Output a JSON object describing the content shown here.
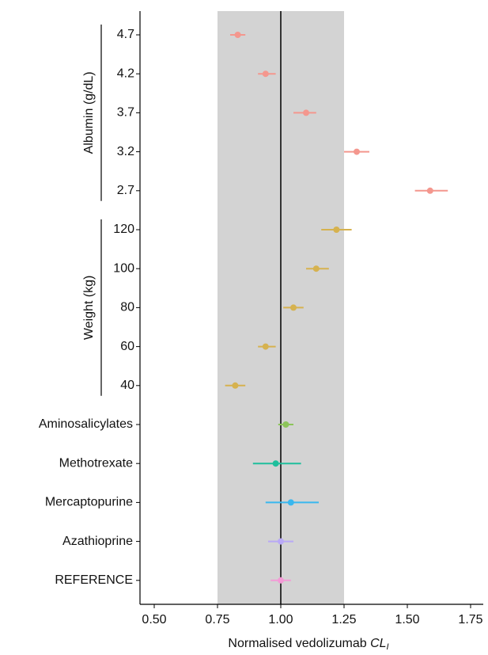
{
  "chart_data": {
    "type": "forest",
    "xlabel": {
      "text": "Normalised vedolizumab ",
      "italic": "CL",
      "subscript": "I"
    },
    "xlim": [
      0.45,
      1.8
    ],
    "xticks": [
      {
        "value": 0.5,
        "label": "0.50"
      },
      {
        "value": 0.75,
        "label": "0.75"
      },
      {
        "value": 1,
        "label": "1.00"
      },
      {
        "value": 1.25,
        "label": "1.25"
      },
      {
        "value": 1.5,
        "label": "1.50"
      },
      {
        "value": 1.75,
        "label": "1.75"
      }
    ],
    "reference_band": [
      0.75,
      1.25
    ],
    "reference_line": 1,
    "series": [
      {
        "name": "Albumin (g/dL)",
        "color": "#f4978e",
        "categories": [
          "4.7",
          "4.2",
          "3.7",
          "3.2",
          "2.7"
        ],
        "values": [
          0.83,
          0.94,
          1.1,
          1.3,
          1.59
        ],
        "lower": [
          0.8,
          0.91,
          1.05,
          1.25,
          1.53
        ],
        "upper": [
          0.86,
          0.98,
          1.14,
          1.35,
          1.66
        ]
      },
      {
        "name": "Weight (kg)",
        "color": "#d6b24f",
        "categories": [
          "120",
          "100",
          "80",
          "60",
          "40"
        ],
        "values": [
          1.22,
          1.14,
          1.05,
          0.94,
          0.82
        ],
        "lower": [
          1.16,
          1.1,
          1.01,
          0.91,
          0.78
        ],
        "upper": [
          1.28,
          1.19,
          1.09,
          0.98,
          0.86
        ]
      },
      {
        "color": "#8cc45a",
        "categories": [
          "Aminosalicylates"
        ],
        "values": [
          1.02
        ],
        "lower": [
          0.99
        ],
        "upper": [
          1.05
        ]
      },
      {
        "color": "#1fbf9c",
        "categories": [
          "Methotrexate"
        ],
        "values": [
          0.98
        ],
        "lower": [
          0.89
        ],
        "upper": [
          1.08
        ]
      },
      {
        "color": "#39b7ee",
        "categories": [
          "Mercaptopurine"
        ],
        "values": [
          1.04
        ],
        "lower": [
          0.94
        ],
        "upper": [
          1.15
        ]
      },
      {
        "color": "#b9a9f6",
        "categories": [
          "Azathioprine"
        ],
        "values": [
          1.0
        ],
        "lower": [
          0.95
        ],
        "upper": [
          1.05
        ]
      },
      {
        "color": "#f39bd6",
        "categories": [
          "REFERENCE"
        ],
        "values": [
          1.0
        ],
        "lower": [
          0.96
        ],
        "upper": [
          1.04
        ]
      }
    ]
  }
}
